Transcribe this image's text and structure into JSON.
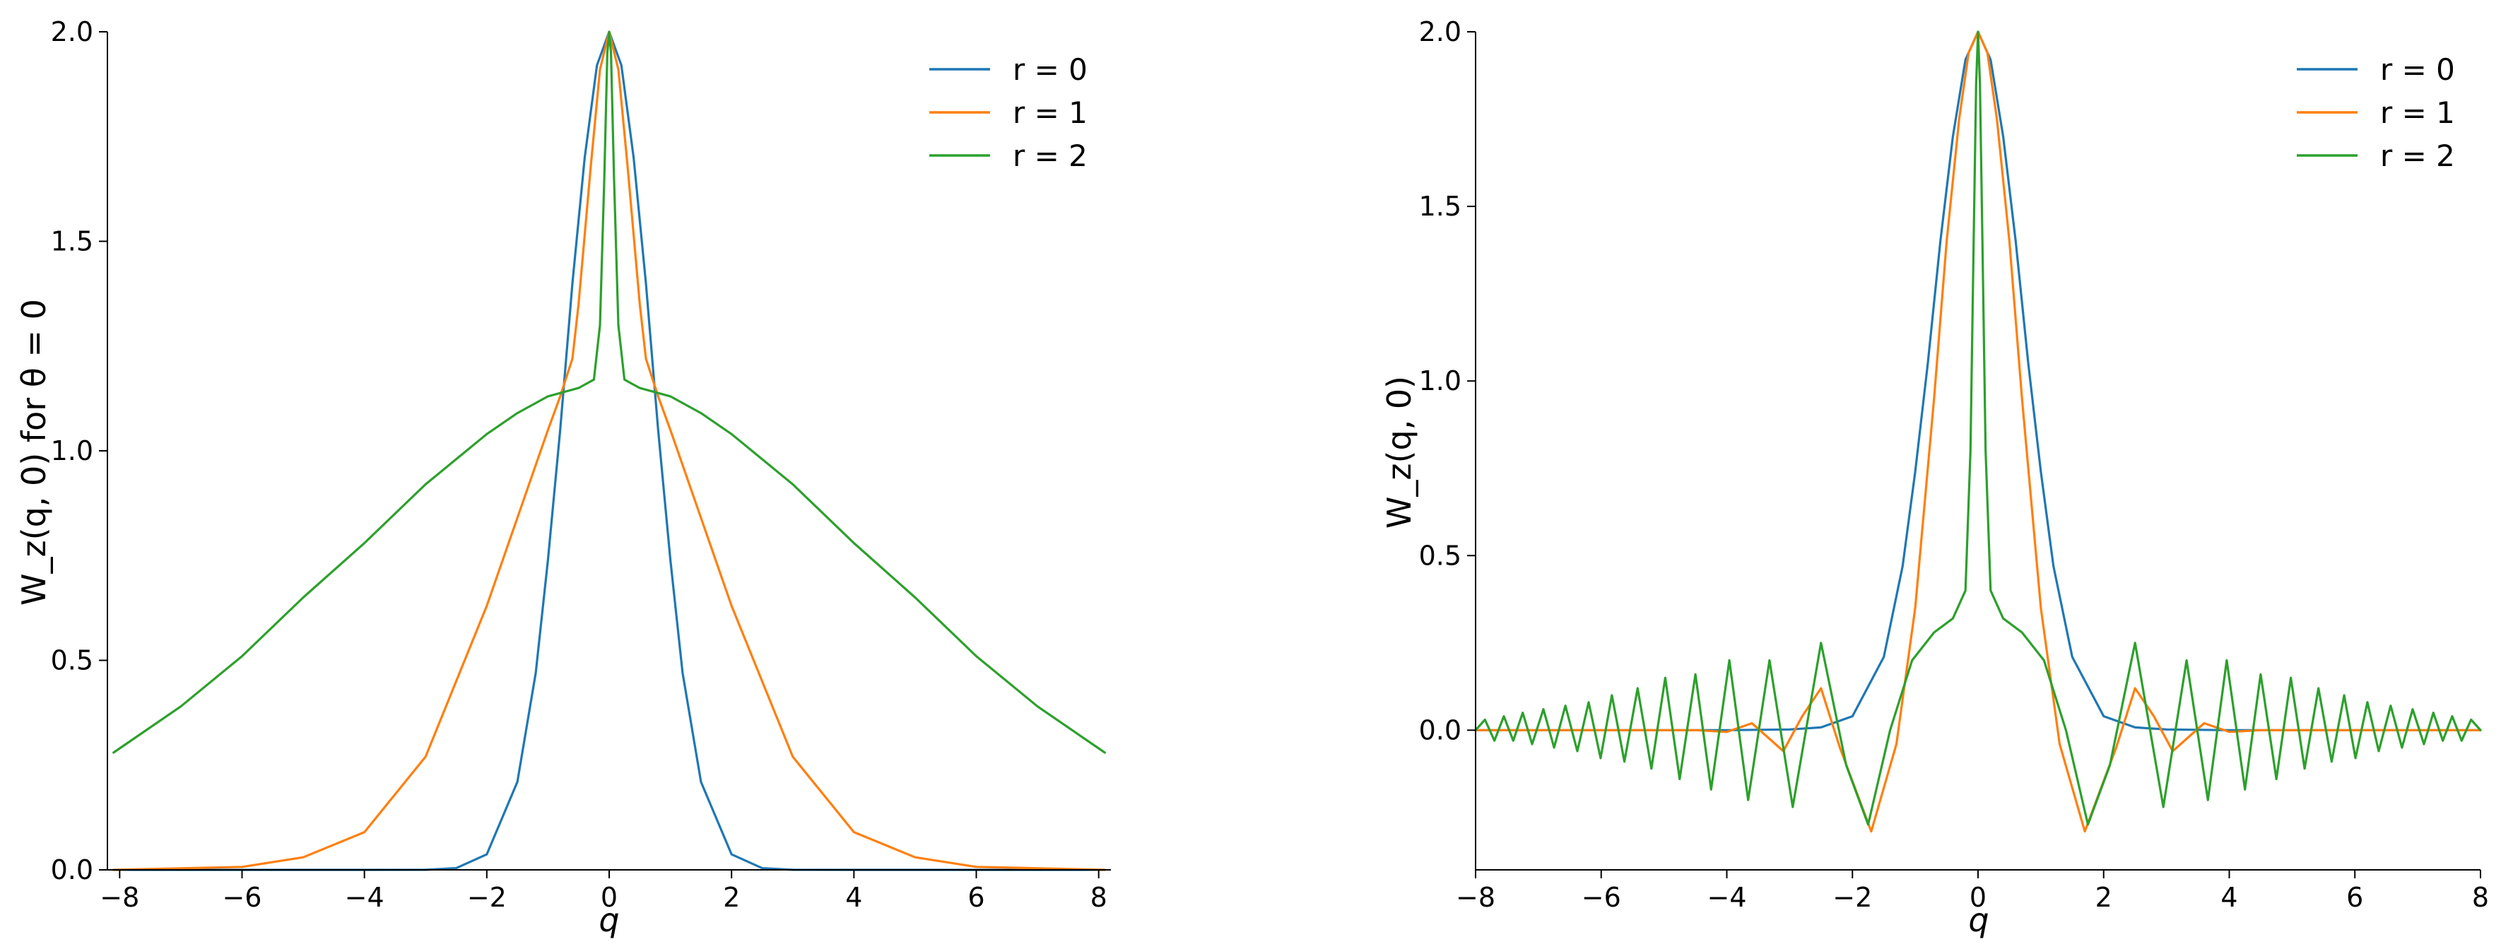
{
  "chart_data": [
    {
      "type": "line",
      "xlabel": "q",
      "ylabel": "W_z(q, 0) for θ = 0",
      "xlim": [
        -8.2,
        8.2
      ],
      "ylim": [
        0,
        2.0
      ],
      "xticks": [
        -8,
        -6,
        -4,
        -2,
        0,
        2,
        4,
        6,
        8
      ],
      "yticks": [
        0.0,
        0.5,
        1.0,
        1.5,
        2.0
      ],
      "ytick_labels": [
        "0.0",
        "0.5",
        "1.0",
        "1.5",
        "2.0"
      ],
      "grid": false,
      "legend_position": "top-right",
      "series": [
        {
          "name": "r = 0",
          "color": "#1f77b4",
          "x": [
            -8.1,
            -6,
            -4,
            -3,
            -2.5,
            -2,
            -1.5,
            -1.2,
            -1,
            -0.8,
            -0.6,
            -0.4,
            -0.2,
            0,
            0.2,
            0.4,
            0.6,
            0.8,
            1,
            1.2,
            1.5,
            2,
            2.5,
            3,
            4,
            6,
            8.1
          ],
          "y": [
            0,
            0,
            0,
            0.0002,
            0.004,
            0.037,
            0.21,
            0.47,
            0.74,
            1.05,
            1.4,
            1.7,
            1.92,
            2.0,
            1.92,
            1.7,
            1.4,
            1.05,
            0.74,
            0.47,
            0.21,
            0.037,
            0.004,
            0.0002,
            0,
            0,
            0
          ]
        },
        {
          "name": "r = 1",
          "color": "#ff7f0e",
          "x": [
            -8.1,
            -6,
            -5,
            -4,
            -3,
            -2,
            -1.5,
            -1,
            -0.8,
            -0.6,
            -0.5,
            -0.3,
            -0.15,
            0,
            0.15,
            0.3,
            0.5,
            0.6,
            0.8,
            1,
            1.5,
            2,
            3,
            4,
            5,
            6,
            8.1
          ],
          "y": [
            0.0,
            0.007,
            0.03,
            0.09,
            0.27,
            0.63,
            0.84,
            1.05,
            1.13,
            1.22,
            1.35,
            1.68,
            1.91,
            2.0,
            1.91,
            1.68,
            1.35,
            1.22,
            1.13,
            1.05,
            0.84,
            0.63,
            0.27,
            0.09,
            0.03,
            0.007,
            0.0
          ]
        },
        {
          "name": "r = 2",
          "color": "#2ca02c",
          "x": [
            -8.1,
            -7,
            -6,
            -5,
            -4,
            -3,
            -2,
            -1.5,
            -1,
            -0.5,
            -0.25,
            -0.15,
            -0.08,
            -0.03,
            0,
            0.03,
            0.08,
            0.15,
            0.25,
            0.5,
            1,
            1.5,
            2,
            3,
            4,
            5,
            6,
            7,
            8.1
          ],
          "y": [
            0.28,
            0.39,
            0.51,
            0.65,
            0.78,
            0.92,
            1.04,
            1.09,
            1.13,
            1.15,
            1.17,
            1.3,
            1.65,
            1.95,
            2.0,
            1.95,
            1.65,
            1.3,
            1.17,
            1.15,
            1.13,
            1.09,
            1.04,
            0.92,
            0.78,
            0.65,
            0.51,
            0.39,
            0.28
          ]
        }
      ]
    },
    {
      "type": "line",
      "xlabel": "q",
      "ylabel": "W_z(q, 0)",
      "xlim": [
        -8,
        8
      ],
      "ylim": [
        -0.4,
        2.0
      ],
      "xticks": [
        -8,
        -6,
        -4,
        -2,
        0,
        2,
        4,
        6,
        8
      ],
      "yticks": [
        0.0,
        0.5,
        1.0,
        1.5,
        2.0
      ],
      "ytick_labels": [
        "0.0",
        "0.5",
        "1.0",
        "1.5",
        "2.0"
      ],
      "grid": false,
      "legend_position": "top-right",
      "series": [
        {
          "name": "r = 0",
          "color": "#1f77b4",
          "x": [
            -8,
            -4,
            -3,
            -2.5,
            -2,
            -1.5,
            -1.2,
            -1,
            -0.8,
            -0.6,
            -0.4,
            -0.2,
            0,
            0.2,
            0.4,
            0.6,
            0.8,
            1,
            1.2,
            1.5,
            2,
            2.5,
            3,
            4,
            8
          ],
          "y": [
            0,
            0,
            0.002,
            0.008,
            0.04,
            0.21,
            0.47,
            0.74,
            1.05,
            1.4,
            1.7,
            1.92,
            2.0,
            1.92,
            1.7,
            1.4,
            1.05,
            0.74,
            0.47,
            0.21,
            0.04,
            0.008,
            0.002,
            0,
            0
          ]
        },
        {
          "name": "r = 1",
          "color": "#ff7f0e",
          "x": [
            -8,
            -4.5,
            -4,
            -3.6,
            -3.1,
            -2.8,
            -2.5,
            -2.2,
            -1.7,
            -1.3,
            -1,
            -0.7,
            -0.5,
            -0.3,
            -0.15,
            0,
            0.15,
            0.3,
            0.5,
            0.7,
            1,
            1.3,
            1.7,
            2.2,
            2.5,
            2.8,
            3.1,
            3.6,
            4,
            4.5,
            8
          ],
          "y": [
            0,
            0,
            -0.005,
            0.02,
            -0.06,
            0.04,
            0.12,
            -0.05,
            -0.29,
            -0.04,
            0.35,
            0.95,
            1.4,
            1.75,
            1.94,
            2.0,
            1.94,
            1.75,
            1.4,
            0.95,
            0.35,
            -0.04,
            -0.29,
            -0.05,
            0.12,
            0.04,
            -0.06,
            0.02,
            -0.005,
            0,
            0
          ]
        },
        {
          "name": "r = 2",
          "color": "#2ca02c",
          "x": [
            -8,
            -7.85,
            -7.7,
            -7.55,
            -7.4,
            -7.25,
            -7.1,
            -6.92,
            -6.75,
            -6.57,
            -6.38,
            -6.2,
            -6.01,
            -5.83,
            -5.63,
            -5.42,
            -5.2,
            -4.98,
            -4.75,
            -4.5,
            -4.25,
            -3.96,
            -3.66,
            -3.32,
            -2.95,
            -2.5,
            -2.1,
            -1.75,
            -1.4,
            -1.05,
            -0.7,
            -0.4,
            -0.2,
            -0.12,
            -0.07,
            -0.03,
            0,
            0.03,
            0.07,
            0.12,
            0.2,
            0.4,
            0.7,
            1.05,
            1.4,
            1.75,
            2.1,
            2.5,
            2.95,
            3.32,
            3.66,
            3.96,
            4.25,
            4.5,
            4.75,
            4.98,
            5.2,
            5.42,
            5.63,
            5.83,
            6.01,
            6.2,
            6.38,
            6.57,
            6.75,
            6.92,
            7.1,
            7.25,
            7.4,
            7.55,
            7.7,
            7.85,
            8
          ],
          "y": [
            0.0,
            0.03,
            -0.03,
            0.04,
            -0.03,
            0.05,
            -0.04,
            0.06,
            -0.05,
            0.07,
            -0.06,
            0.08,
            -0.08,
            0.1,
            -0.09,
            0.12,
            -0.11,
            0.15,
            -0.14,
            0.16,
            -0.17,
            0.2,
            -0.2,
            0.2,
            -0.22,
            0.25,
            -0.1,
            -0.27,
            0.0,
            0.2,
            0.28,
            0.32,
            0.4,
            0.8,
            1.4,
            1.85,
            2.0,
            1.85,
            1.4,
            0.8,
            0.4,
            0.32,
            0.28,
            0.2,
            0.0,
            -0.27,
            -0.1,
            0.25,
            -0.22,
            0.2,
            -0.2,
            0.2,
            -0.17,
            0.16,
            -0.14,
            0.15,
            -0.11,
            0.12,
            -0.09,
            0.1,
            -0.08,
            0.08,
            -0.06,
            0.07,
            -0.05,
            0.06,
            -0.04,
            0.05,
            -0.03,
            0.04,
            -0.03,
            0.03,
            0.0
          ]
        }
      ]
    }
  ]
}
